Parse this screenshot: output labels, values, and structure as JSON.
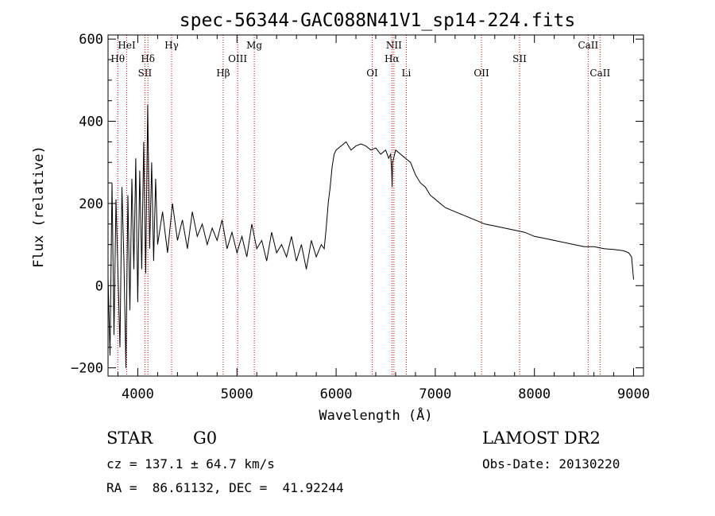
{
  "chart_data": {
    "type": "line",
    "title": "spec-56344-GAC088N41V1_sp14-224.fits",
    "xlabel": "Wavelength (Å)",
    "ylabel": "Flux (relative)",
    "xlim": [
      3700,
      9100
    ],
    "ylim": [
      -220,
      610
    ],
    "x_ticks": [
      4000,
      5000,
      6000,
      7000,
      8000,
      9000
    ],
    "y_ticks": [
      -200,
      0,
      200,
      400,
      600
    ],
    "grid": false,
    "line_color": "#000000",
    "marker_line_color": "#cc0000",
    "spectrum": {
      "x": [
        3700,
        3720,
        3740,
        3760,
        3780,
        3800,
        3820,
        3840,
        3860,
        3880,
        3900,
        3920,
        3940,
        3960,
        3980,
        4000,
        4020,
        4040,
        4060,
        4080,
        4100,
        4120,
        4140,
        4160,
        4180,
        4200,
        4250,
        4300,
        4350,
        4400,
        4450,
        4500,
        4550,
        4600,
        4650,
        4700,
        4750,
        4800,
        4850,
        4900,
        4950,
        5000,
        5050,
        5100,
        5150,
        5200,
        5250,
        5300,
        5350,
        5400,
        5450,
        5500,
        5550,
        5600,
        5650,
        5700,
        5750,
        5800,
        5850,
        5880,
        5900,
        5920,
        5940,
        5960,
        5980,
        6000,
        6050,
        6100,
        6150,
        6200,
        6250,
        6300,
        6350,
        6400,
        6450,
        6500,
        6530,
        6550,
        6560,
        6565,
        6570,
        6600,
        6650,
        6700,
        6750,
        6800,
        6850,
        6900,
        6950,
        7000,
        7050,
        7100,
        7200,
        7300,
        7400,
        7500,
        7600,
        7700,
        7800,
        7900,
        8000,
        8100,
        8200,
        8300,
        8400,
        8500,
        8600,
        8700,
        8800,
        8900,
        8950,
        8980,
        9000
      ],
      "y": [
        20,
        -170,
        250,
        -120,
        210,
        30,
        -150,
        240,
        60,
        -200,
        220,
        -60,
        260,
        40,
        310,
        -40,
        280,
        40,
        350,
        30,
        440,
        90,
        300,
        60,
        260,
        100,
        180,
        80,
        200,
        110,
        160,
        90,
        180,
        120,
        150,
        100,
        140,
        110,
        160,
        90,
        130,
        80,
        120,
        70,
        150,
        90,
        110,
        60,
        130,
        80,
        100,
        70,
        120,
        60,
        100,
        40,
        110,
        70,
        100,
        90,
        140,
        200,
        240,
        290,
        320,
        330,
        340,
        350,
        330,
        340,
        345,
        340,
        330,
        335,
        320,
        330,
        310,
        320,
        280,
        240,
        300,
        330,
        320,
        310,
        300,
        270,
        250,
        240,
        220,
        210,
        200,
        190,
        180,
        170,
        160,
        150,
        145,
        140,
        135,
        130,
        120,
        115,
        110,
        105,
        100,
        95,
        95,
        90,
        88,
        85,
        80,
        70,
        15
      ]
    },
    "lines": [
      {
        "label": "Hθ",
        "wavelength": 3798,
        "row": 1
      },
      {
        "label": "HeI",
        "wavelength": 3889,
        "row": 0
      },
      {
        "label": "Hδ",
        "wavelength": 4102,
        "row": 1
      },
      {
        "label": "SII",
        "wavelength": 4072,
        "row": 2
      },
      {
        "label": "Hγ",
        "wavelength": 4341,
        "row": 0
      },
      {
        "label": "Hβ",
        "wavelength": 4861,
        "row": 2
      },
      {
        "label": "OIII",
        "wavelength": 5007,
        "row": 1
      },
      {
        "label": "Mg",
        "wavelength": 5175,
        "row": 0
      },
      {
        "label": "OI",
        "wavelength": 6364,
        "row": 2
      },
      {
        "label": "NII",
        "wavelength": 6583,
        "row": 0
      },
      {
        "label": "Hα",
        "wavelength": 6563,
        "row": 1
      },
      {
        "label": "Li",
        "wavelength": 6708,
        "row": 2
      },
      {
        "label": "OII",
        "wavelength": 7466,
        "row": 2
      },
      {
        "label": "SII",
        "wavelength": 7850,
        "row": 1
      },
      {
        "label": "CaII",
        "wavelength": 8542,
        "row": 0
      },
      {
        "label": "CaII",
        "wavelength": 8662,
        "row": 2
      }
    ]
  },
  "info": {
    "object_class": "STAR",
    "subclass": "G0",
    "survey": "LAMOST DR2",
    "redshift": "cz = 137.1 ± 64.7 km/s",
    "obs_date": "Obs-Date: 20130220",
    "coords": "RA =  86.61132, DEC =  41.92244"
  }
}
